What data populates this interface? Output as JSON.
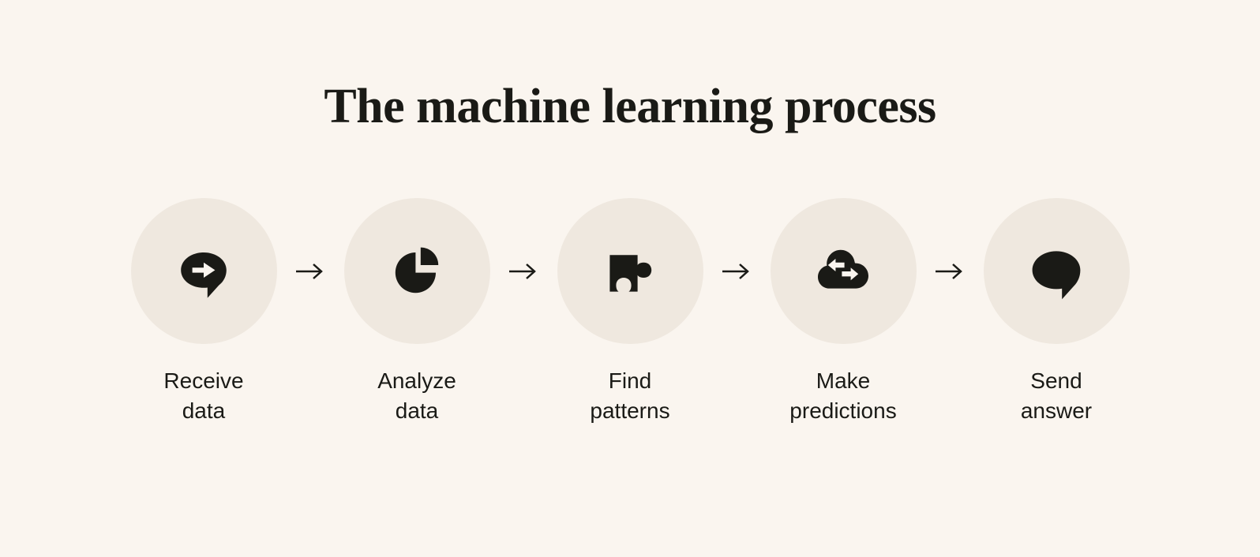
{
  "title": "The machine learning process",
  "title_fontsize": 62,
  "label_fontsize": 28,
  "background_color": "#faf5ef",
  "circle_color": "#efe8df",
  "icon_color": "#1a1a16",
  "text_color": "#1a1a16",
  "circle_diameter": 185,
  "steps": [
    {
      "icon": "speech-arrow-icon",
      "label": "Receive\ndata"
    },
    {
      "icon": "pie-chart-icon",
      "label": "Analyze\ndata"
    },
    {
      "icon": "puzzle-icon",
      "label": "Find\npatterns"
    },
    {
      "icon": "cloud-arrows-icon",
      "label": "Make\npredictions"
    },
    {
      "icon": "speech-bubble-icon",
      "label": "Send\nanswer"
    }
  ]
}
